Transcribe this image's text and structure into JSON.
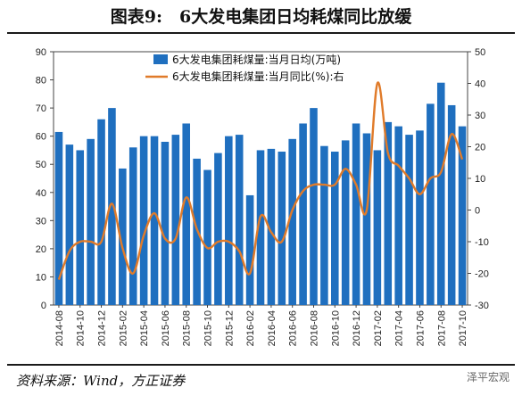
{
  "title": "图表9:　6大发电集团日均耗煤同比放缓",
  "source": "资料来源：Wind，方正证券",
  "watermark": "泽平宏观",
  "colors": {
    "bar": "#1f6fbf",
    "line": "#e07b2a",
    "line_stroke": "#c9671c"
  },
  "chart_data": {
    "type": "bar",
    "x": [
      "2014-08",
      "2014-09",
      "2014-10",
      "2014-11",
      "2014-12",
      "2015-01",
      "2015-02",
      "2015-03",
      "2015-04",
      "2015-05",
      "2015-06",
      "2015-07",
      "2015-08",
      "2015-09",
      "2015-10",
      "2015-11",
      "2015-12",
      "2016-01",
      "2016-02",
      "2016-03",
      "2016-04",
      "2016-05",
      "2016-06",
      "2016-07",
      "2016-08",
      "2016-09",
      "2016-10",
      "2016-11",
      "2016-12",
      "2017-01",
      "2017-02",
      "2017-03",
      "2017-04",
      "2017-05",
      "2017-06",
      "2017-07",
      "2017-08",
      "2017-09",
      "2017-10"
    ],
    "x_tick_labels": [
      "2014-08",
      "2014-10",
      "2014-12",
      "2015-02",
      "2015-04",
      "2015-06",
      "2015-08",
      "2015-10",
      "2015-12",
      "2016-02",
      "2016-04",
      "2016-06",
      "2016-08",
      "2016-10",
      "2016-12",
      "2017-02",
      "2017-04",
      "2017-06",
      "2017-08",
      "2017-10"
    ],
    "series": [
      {
        "name": "6大发电集团耗煤量:当月日均(万吨)",
        "axis": "left",
        "kind": "bar",
        "values": [
          61.5,
          57,
          55,
          59,
          66,
          70,
          48.5,
          56,
          60,
          60,
          58,
          60.5,
          64.5,
          52,
          48,
          54,
          60,
          60.5,
          39,
          55,
          55.5,
          54.5,
          59,
          64.5,
          70,
          56.5,
          54.5,
          58.5,
          64.5,
          61,
          55,
          65,
          63.5,
          60.5,
          62,
          71.5,
          79,
          71,
          63.5
        ]
      },
      {
        "name": "6大发电集团耗煤量:当月同比(%):右",
        "axis": "right",
        "kind": "line",
        "values": [
          -22,
          -13,
          -10,
          -10,
          -10,
          2,
          -12,
          -20,
          -8,
          -1,
          -9,
          -9,
          4,
          -6,
          -12,
          -10,
          -10,
          -13,
          -20,
          -2,
          -7,
          -10,
          0,
          6,
          8,
          8,
          8,
          13,
          8,
          0,
          40,
          18,
          14,
          10,
          5,
          10,
          12,
          24,
          16
        ]
      }
    ],
    "ylim": [
      0,
      90
    ],
    "yticks": [
      0,
      10,
      20,
      30,
      40,
      50,
      60,
      70,
      80,
      90
    ],
    "y2lim": [
      -30,
      50
    ],
    "y2ticks": [
      -30,
      -20,
      -10,
      0,
      10,
      20,
      30,
      40,
      50
    ],
    "legend": "top-center"
  }
}
